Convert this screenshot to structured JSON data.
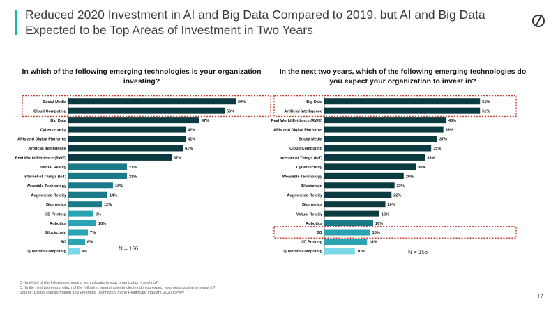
{
  "title": "Reduced 2020 Investment in AI and Big Data Compared to 2019, but AI and Big Data Expected to be Top Areas of Investment in Two Years",
  "page_number": "17",
  "footnotes": {
    "q1": "Q: In which of the following emerging technologies is your organization investing?",
    "q2": "Q: In the next two years, which of the following emerging technologies do you expect your organization to invest in?",
    "source": "Source: Digital Transformation and Emerging Technology in the Healthcare Industry, 2020 survey"
  },
  "colors": {
    "dark": "#0b3a40",
    "mid": "#1a7a87",
    "light": "#2aa3b3",
    "lightest": "#7ad8e8",
    "highlight_border": "#c0392b",
    "accent": "#14b89a"
  },
  "chart_data": [
    {
      "type": "bar",
      "orientation": "horizontal",
      "title": "In which of the following emerging technologies is your organization investing?",
      "n_label": "N = 156",
      "categories": [
        "Social Media",
        "Cloud Computing",
        "Big Data",
        "Cybersecurity",
        "APIs and Digital Platforms",
        "Artificial Intelligence",
        "Real World Evidence (RWE)",
        "Virtual Reality",
        "Internet of Things (IoT)",
        "Wearable Technology",
        "Augmented Reality",
        "Biometrics",
        "3D Printing",
        "Robotics",
        "Blockchain",
        "5G",
        "Quantum Computing"
      ],
      "values": [
        60,
        56,
        47,
        42,
        42,
        41,
        37,
        21,
        21,
        16,
        14,
        12,
        9,
        10,
        7,
        6,
        4
      ],
      "value_labels": [
        "60%",
        "56%",
        "47%",
        "42%",
        "42%",
        "41%",
        "37%",
        "21%",
        "21%",
        "16%",
        "14%",
        "12%",
        "9%",
        "10%",
        "7%",
        "6%",
        "4%"
      ],
      "color_groups": [
        "dark",
        "dark",
        "dark",
        "dark",
        "dark",
        "dark",
        "dark",
        "mid",
        "mid",
        "mid",
        "mid",
        "mid",
        "light",
        "light",
        "light",
        "light",
        "lightest"
      ],
      "highlighted": [
        0,
        1
      ]
    },
    {
      "type": "bar",
      "orientation": "horizontal",
      "title": "In the next two years, which of the following emerging technologies do you expect your organization to invest in?",
      "n_label": "N = 156",
      "categories": [
        "Big Data",
        "Artificial Intelligence",
        "Real World Evidence (RWE)",
        "APIs and Digital Platforms",
        "Social Media",
        "Cloud Computing",
        "Internet of Things (IoT)",
        "Cybersecurity",
        "Wearable Technology",
        "Blockchain",
        "Augmented Reality",
        "Biometrics",
        "Virtual Reality",
        "Robotics",
        "5G",
        "3D Printing",
        "Quantum Computing"
      ],
      "values": [
        51,
        51,
        40,
        39,
        37,
        35,
        33,
        30,
        26,
        23,
        22,
        20,
        18,
        16,
        15,
        14,
        10
      ],
      "value_labels": [
        "51%",
        "51%",
        "40%",
        "39%",
        "37%",
        "35%",
        "33%",
        "30%",
        "26%",
        "23%",
        "22%",
        "20%",
        "18%",
        "16%",
        "15%",
        "14%",
        "10%"
      ],
      "color_groups": [
        "dark",
        "dark",
        "dark",
        "dark",
        "dark",
        "dark",
        "dark",
        "dark",
        "dark",
        "dark",
        "dark",
        "dark",
        "dark",
        "mid",
        "light",
        "light",
        "lightest"
      ],
      "highlighted": [
        0,
        1,
        14
      ]
    }
  ]
}
